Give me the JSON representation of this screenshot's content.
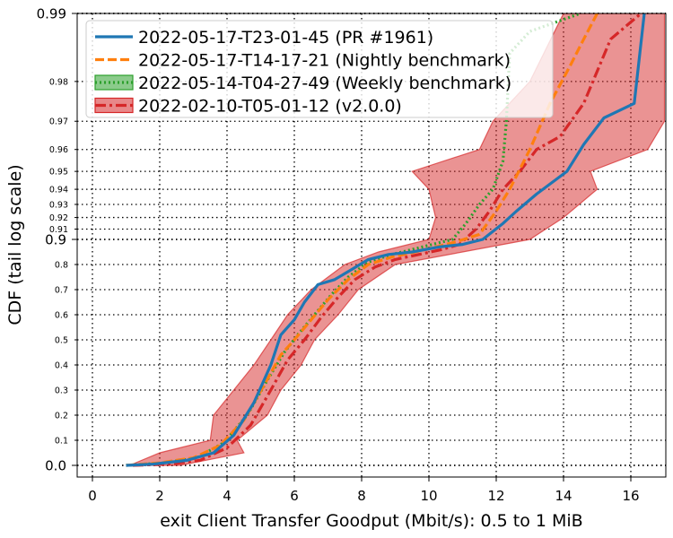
{
  "chart_data": {
    "type": "line",
    "title": "",
    "xlabel": "exit Client Transfer Goodput (Mbit/s): 0.5 to 1 MiB",
    "ylabel": "CDF (tail log scale)",
    "xlim": [
      -0.4,
      17
    ],
    "x_ticks": [
      "0",
      "2",
      "4",
      "6",
      "8",
      "10",
      "12",
      "14",
      "16"
    ],
    "y_scale": "tail-log (linear 0–0.9, log tail above 0.9)",
    "y_ticks_major": [
      "0.0",
      "0.9",
      "0.99"
    ],
    "y_ticks_minor": [
      "0.1",
      "0.2",
      "0.3",
      "0.4",
      "0.5",
      "0.6",
      "0.7",
      "0.8",
      "0.91",
      "0.92",
      "0.93",
      "0.94",
      "0.95",
      "0.96",
      "0.97",
      "0.98"
    ],
    "grid": true,
    "legend_position": "upper-left",
    "series": [
      {
        "name": "2022-05-17-T23-01-45 (PR #1961)",
        "color": "#1f77b4",
        "style": "solid",
        "x": [
          1.0,
          1.8,
          2.8,
          3.6,
          4.2,
          4.8,
          5.3,
          5.6,
          6.0,
          6.3,
          6.7,
          7.2,
          7.7,
          8.2,
          8.8,
          9.5,
          10.3,
          11.0,
          11.6,
          12.2,
          12.6,
          13.2,
          14.1,
          14.6,
          15.2,
          16.1,
          16.4
        ],
        "y": [
          0.0,
          0.005,
          0.02,
          0.05,
          0.12,
          0.25,
          0.4,
          0.52,
          0.58,
          0.65,
          0.72,
          0.74,
          0.78,
          0.82,
          0.84,
          0.85,
          0.87,
          0.88,
          0.9,
          0.915,
          0.925,
          0.937,
          0.95,
          0.962,
          0.971,
          0.975,
          0.99
        ]
      },
      {
        "name": "2022-05-17-T14-17-21 (Nightly benchmark)",
        "color": "#ff7f0e",
        "style": "dashed",
        "x": [
          1.0,
          2.0,
          3.0,
          3.8,
          4.5,
          5.1,
          5.6,
          6.0,
          6.5,
          7.0,
          7.6,
          8.2,
          8.9,
          9.6,
          10.2,
          10.8,
          11.5,
          12.0,
          12.4,
          13.0,
          13.6,
          14.2,
          14.6,
          15.0
        ],
        "y": [
          0.0,
          0.01,
          0.03,
          0.08,
          0.18,
          0.32,
          0.44,
          0.5,
          0.58,
          0.66,
          0.74,
          0.8,
          0.83,
          0.85,
          0.87,
          0.89,
          0.905,
          0.925,
          0.94,
          0.96,
          0.975,
          0.983,
          0.987,
          0.99
        ]
      },
      {
        "name": "2022-05-14-T04-27-49 (Weekly benchmark)",
        "color": "#2ca02c",
        "style": "dotted",
        "x": [
          1.0,
          2.1,
          3.1,
          3.9,
          4.6,
          5.2,
          5.7,
          6.1,
          6.6,
          7.1,
          7.6,
          8.2,
          8.9,
          9.5,
          10.1,
          10.7,
          11.1,
          11.5,
          11.9,
          12.2,
          12.3,
          12.4,
          13.0,
          14.5
        ],
        "y": [
          0.0,
          0.01,
          0.03,
          0.09,
          0.2,
          0.34,
          0.45,
          0.52,
          0.6,
          0.68,
          0.75,
          0.81,
          0.84,
          0.86,
          0.88,
          0.9,
          0.915,
          0.93,
          0.94,
          0.955,
          0.97,
          0.985,
          0.988,
          0.99
        ]
      },
      {
        "name": "2022-02-10-T05-01-12 (v2.0.0)",
        "color": "#d62728",
        "style": "dashdot",
        "x": [
          1.2,
          2.3,
          3.2,
          4.0,
          4.7,
          5.3,
          5.8,
          6.3,
          6.8,
          7.3,
          7.8,
          8.4,
          9.0,
          9.7,
          10.4,
          10.9,
          11.4,
          11.8,
          12.2,
          12.7,
          13.2,
          13.9,
          14.6,
          15.4,
          16.3
        ],
        "y": [
          0.0,
          0.005,
          0.02,
          0.07,
          0.16,
          0.3,
          0.42,
          0.5,
          0.59,
          0.67,
          0.74,
          0.79,
          0.82,
          0.84,
          0.86,
          0.88,
          0.91,
          0.925,
          0.94,
          0.95,
          0.96,
          0.965,
          0.975,
          0.987,
          0.99
        ]
      }
    ],
    "band": {
      "series": "2022-02-10-T05-01-12 (v2.0.0)",
      "color": "#d62728",
      "y": [
        0.0,
        0.05,
        0.1,
        0.2,
        0.3,
        0.4,
        0.5,
        0.6,
        0.7,
        0.8,
        0.85,
        0.9,
        0.92,
        0.94,
        0.95,
        0.96,
        0.97,
        0.98,
        0.99
      ],
      "x_low": [
        1.1,
        2.0,
        3.5,
        3.6,
        4.2,
        4.8,
        5.3,
        5.8,
        6.5,
        7.5,
        8.5,
        10.0,
        10.2,
        10.0,
        9.5,
        11.5,
        11.9,
        13.0,
        14.0
      ],
      "x_high": [
        2.6,
        4.5,
        4.3,
        5.2,
        5.6,
        6.2,
        6.6,
        7.3,
        7.9,
        9.0,
        11.0,
        13.0,
        14.0,
        15.0,
        14.8,
        16.5,
        17.0,
        17.0,
        17.0
      ]
    }
  }
}
